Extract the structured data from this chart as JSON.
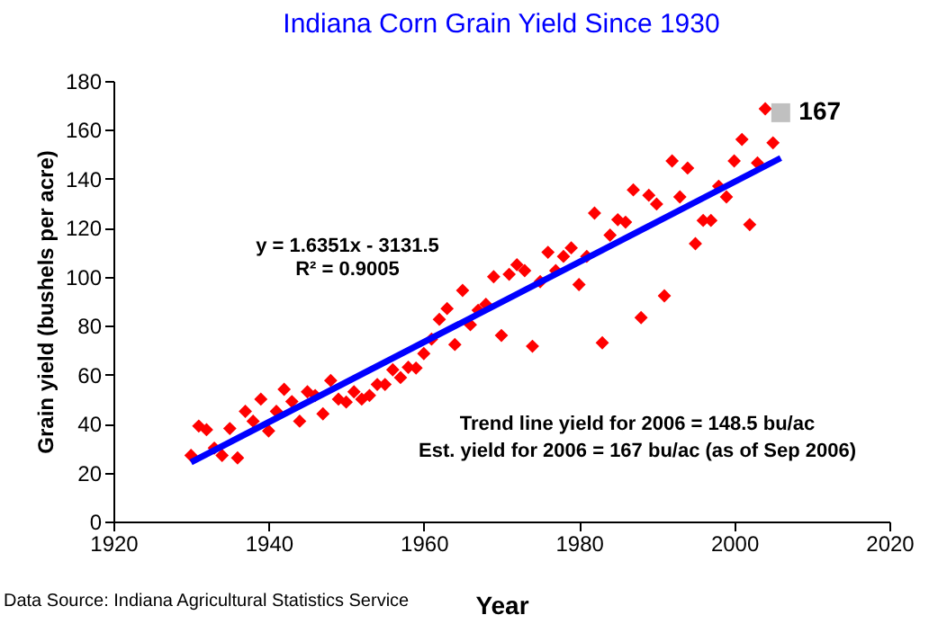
{
  "chart_data": {
    "type": "scatter",
    "title": "Indiana Corn Grain Yield Since 1930",
    "xlabel": "Year",
    "ylabel": "Grain yield (bushels per acre)",
    "xlim": [
      1920,
      2020
    ],
    "xticks": [
      1920,
      1940,
      1960,
      1980,
      2000,
      2020
    ],
    "ylim": [
      0,
      180
    ],
    "yticks": [
      0,
      20,
      40,
      60,
      80,
      100,
      120,
      140,
      160,
      180
    ],
    "grid": false,
    "series": [
      {
        "color": "#ff0000",
        "marker": "diamond",
        "x": [
          1930,
          1931,
          1932,
          1933,
          1934,
          1935,
          1936,
          1937,
          1938,
          1939,
          1940,
          1941,
          1942,
          1943,
          1944,
          1945,
          1946,
          1947,
          1948,
          1949,
          1950,
          1951,
          1952,
          1953,
          1954,
          1955,
          1956,
          1957,
          1958,
          1959,
          1960,
          1961,
          1962,
          1963,
          1964,
          1965,
          1966,
          1967,
          1968,
          1969,
          1970,
          1971,
          1972,
          1973,
          1974,
          1975,
          1976,
          1977,
          1978,
          1979,
          1980,
          1981,
          1982,
          1983,
          1984,
          1985,
          1986,
          1987,
          1988,
          1989,
          1990,
          1991,
          1992,
          1993,
          1994,
          1995,
          1996,
          1997,
          1998,
          1999,
          2000,
          2001,
          2002,
          2003,
          2004,
          2005
        ],
        "values": [
          27,
          39,
          37.5,
          30,
          27,
          38,
          26,
          45,
          41,
          50,
          37,
          45,
          54,
          49,
          41,
          53,
          51.5,
          44,
          57.6,
          50,
          48.8,
          53,
          50,
          51.5,
          56,
          56,
          62,
          58.8,
          63,
          62.7,
          68.6,
          74.5,
          82.6,
          87,
          72.3,
          94.4,
          80.4,
          86.3,
          88.7,
          100,
          76,
          101,
          104.9,
          102.5,
          71.6,
          98,
          110,
          102.5,
          108.3,
          111.8,
          96.8,
          108.3,
          126,
          73,
          117,
          123.3,
          122.3,
          135.5,
          83.3,
          133.3,
          129.7,
          92.2,
          147.3,
          132.6,
          144.4,
          113.5,
          123,
          123,
          137,
          132.6,
          147.3,
          156.1,
          121.3,
          146.5,
          168.6,
          154.7
        ]
      },
      {
        "type": "line",
        "color": "#0000ff",
        "x": [
          1930,
          2006
        ],
        "values": [
          24.2,
          148.5
        ]
      },
      {
        "color": "#c0c0c0",
        "marker": "square",
        "x": [
          2006
        ],
        "values": [
          167
        ],
        "value_labels": [
          "167"
        ]
      }
    ],
    "annotations": [
      "y = 1.6351x - 3131.5",
      "R² = 0.9005",
      "Trend line yield for 2006 = 148.5 bu/ac",
      "Est. yield for 2006 = 167 bu/ac (as of Sep 2006)",
      "Data Source: Indiana Agricultural Statistics Service"
    ]
  }
}
